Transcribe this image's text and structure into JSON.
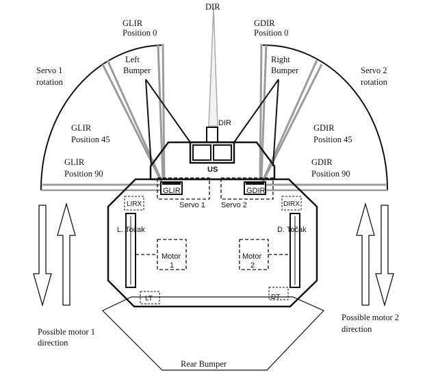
{
  "labels": {
    "dir_top": "DIR",
    "glir_pos0": [
      "GLIR",
      "Position 0"
    ],
    "gdir_pos0": [
      "GDIR",
      "Position 0"
    ],
    "left_bumper": [
      "Left",
      "Bumper"
    ],
    "right_bumper": [
      "Right",
      "Bumper"
    ],
    "servo1_rotation": [
      "Servo 1",
      "rotation"
    ],
    "servo2_rotation": [
      "Servo 2",
      "rotation"
    ],
    "dir_inner": "DIR",
    "glir_pos45": [
      "GLIR",
      "Position 45"
    ],
    "gdir_pos45": [
      "GDIR",
      "Position 45"
    ],
    "us": "US",
    "glir_pos90": [
      "GLIR",
      "Position 90"
    ],
    "gdir_pos90": [
      "GDIR",
      "Position 90"
    ],
    "glir_box": "GLIR",
    "gdir_box": "GDIR",
    "servo1": "Servo 1",
    "servo2": "Servo 2",
    "lirx": "LIRX",
    "dirx": "DIRX",
    "l_tocak": "L. Točak",
    "d_tocak": "D. Točak",
    "motor1": [
      "Motor",
      "1"
    ],
    "motor2": [
      "Motor",
      "2"
    ],
    "lt": "LT",
    "dt": "DT",
    "motor1_direction": [
      "Possible motor 1",
      "direction"
    ],
    "motor2_direction": [
      "Possible motor 2",
      "direction"
    ],
    "rear_bumper": "Rear Bumper"
  }
}
